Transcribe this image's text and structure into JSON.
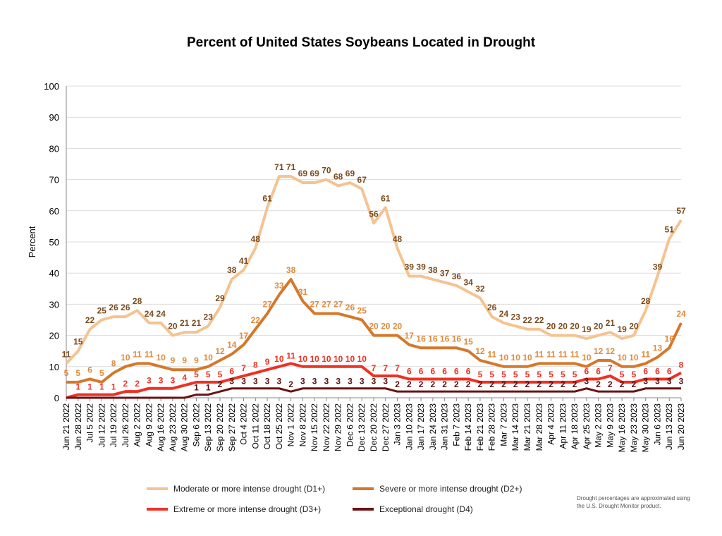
{
  "chart_data": {
    "type": "line",
    "title": "Percent of United States Soybeans Located in Drought",
    "xlabel": "",
    "ylabel": "Percent",
    "ylim": [
      0,
      100
    ],
    "yticks": [
      0,
      10,
      20,
      30,
      40,
      50,
      60,
      70,
      80,
      90,
      100
    ],
    "grid": true,
    "legend_placement": "bottom",
    "x": [
      "Jun 21 2022",
      "Jun 28 2022",
      "Jul 5 2022",
      "Jul 12 2022",
      "Jul 19 2022",
      "Jul 26 2022",
      "Aug 2 2022",
      "Aug 9 2022",
      "Aug 16 2022",
      "Aug 23 2022",
      "Aug 30 2022",
      "Sep 6 2022",
      "Sep 13 2022",
      "Sep 20 2022",
      "Sep 27 2022",
      "Oct 4 2022",
      "Oct 11 2022",
      "Oct 18 2022",
      "Oct 25 2022",
      "Nov 1 2022",
      "Nov 8 2022",
      "Nov 15 2022",
      "Nov 22 2022",
      "Nov 29 2022",
      "Dec 6 2022",
      "Dec 13 2022",
      "Dec 20 2022",
      "Dec 27 2022",
      "Jan 3 2023",
      "Jan 10 2023",
      "Jan 17 2023",
      "Jan 24 2023",
      "Jan 31 2023",
      "Feb 7 2023",
      "Feb 14 2023",
      "Feb 21 2023",
      "Feb 28 2023",
      "Mar 7 2023",
      "Mar 14 2023",
      "Mar 21 2023",
      "Mar 28 2023",
      "Apr 4 2023",
      "Apr 11 2023",
      "Apr 18 2023",
      "Apr 25 2023",
      "May 2 2023",
      "May 9 2023",
      "May 16 2023",
      "May 23 2023",
      "May 30 2023",
      "Jun 6 2023",
      "Jun 13 2023",
      "Jun 20 2023"
    ],
    "series": [
      {
        "name": "Moderate or more intense drought (D1+)",
        "color": "#F5C391",
        "label_color": "#7A4A1C",
        "values": [
          11,
          15,
          22,
          25,
          26,
          26,
          28,
          24,
          24,
          20,
          21,
          21,
          23,
          29,
          38,
          41,
          48,
          61,
          71,
          71,
          69,
          69,
          70,
          68,
          69,
          67,
          56,
          61,
          48,
          39,
          39,
          38,
          37,
          36,
          34,
          32,
          26,
          24,
          23,
          22,
          22,
          20,
          20,
          20,
          19,
          20,
          21,
          19,
          20,
          28,
          39,
          51,
          57
        ]
      },
      {
        "name": "Severe or more intense drought (D2+)",
        "color": "#D4782C",
        "label_color": "#E08A3C",
        "values": [
          5,
          5,
          6,
          5,
          8,
          10,
          11,
          11,
          10,
          9,
          9,
          9,
          10,
          12,
          14,
          17,
          22,
          27,
          33,
          38,
          31,
          27,
          27,
          27,
          26,
          25,
          20,
          20,
          20,
          17,
          16,
          16,
          16,
          16,
          15,
          12,
          11,
          10,
          10,
          10,
          11,
          11,
          11,
          11,
          10,
          12,
          12,
          10,
          10,
          11,
          13,
          16,
          24
        ]
      },
      {
        "name": "Extreme or more intense drought (D3+)",
        "color": "#EE3124",
        "label_color": "#EE3124",
        "values": [
          0,
          1,
          1,
          1,
          1,
          2,
          2,
          3,
          3,
          3,
          4,
          5,
          5,
          5,
          6,
          7,
          8,
          9,
          10,
          11,
          10,
          10,
          10,
          10,
          10,
          10,
          7,
          7,
          7,
          6,
          6,
          6,
          6,
          6,
          6,
          5,
          5,
          5,
          5,
          5,
          5,
          5,
          5,
          5,
          6,
          6,
          7,
          5,
          5,
          6,
          6,
          6,
          8
        ]
      },
      {
        "name": "Exceptional drought (D4)",
        "color": "#6B1212",
        "label_color": "#5A0E0E",
        "values": [
          0,
          0,
          0,
          0,
          0,
          0,
          0,
          0,
          0,
          0,
          0,
          1,
          1,
          2,
          3,
          3,
          3,
          3,
          3,
          2,
          3,
          3,
          3,
          3,
          3,
          3,
          3,
          3,
          2,
          2,
          2,
          2,
          2,
          2,
          2,
          2,
          2,
          2,
          2,
          2,
          2,
          2,
          2,
          2,
          3,
          2,
          2,
          2,
          2,
          3,
          3,
          3,
          3
        ]
      }
    ],
    "note": "Drought percentages are approximated using the U.S. Drought Monitor product."
  }
}
